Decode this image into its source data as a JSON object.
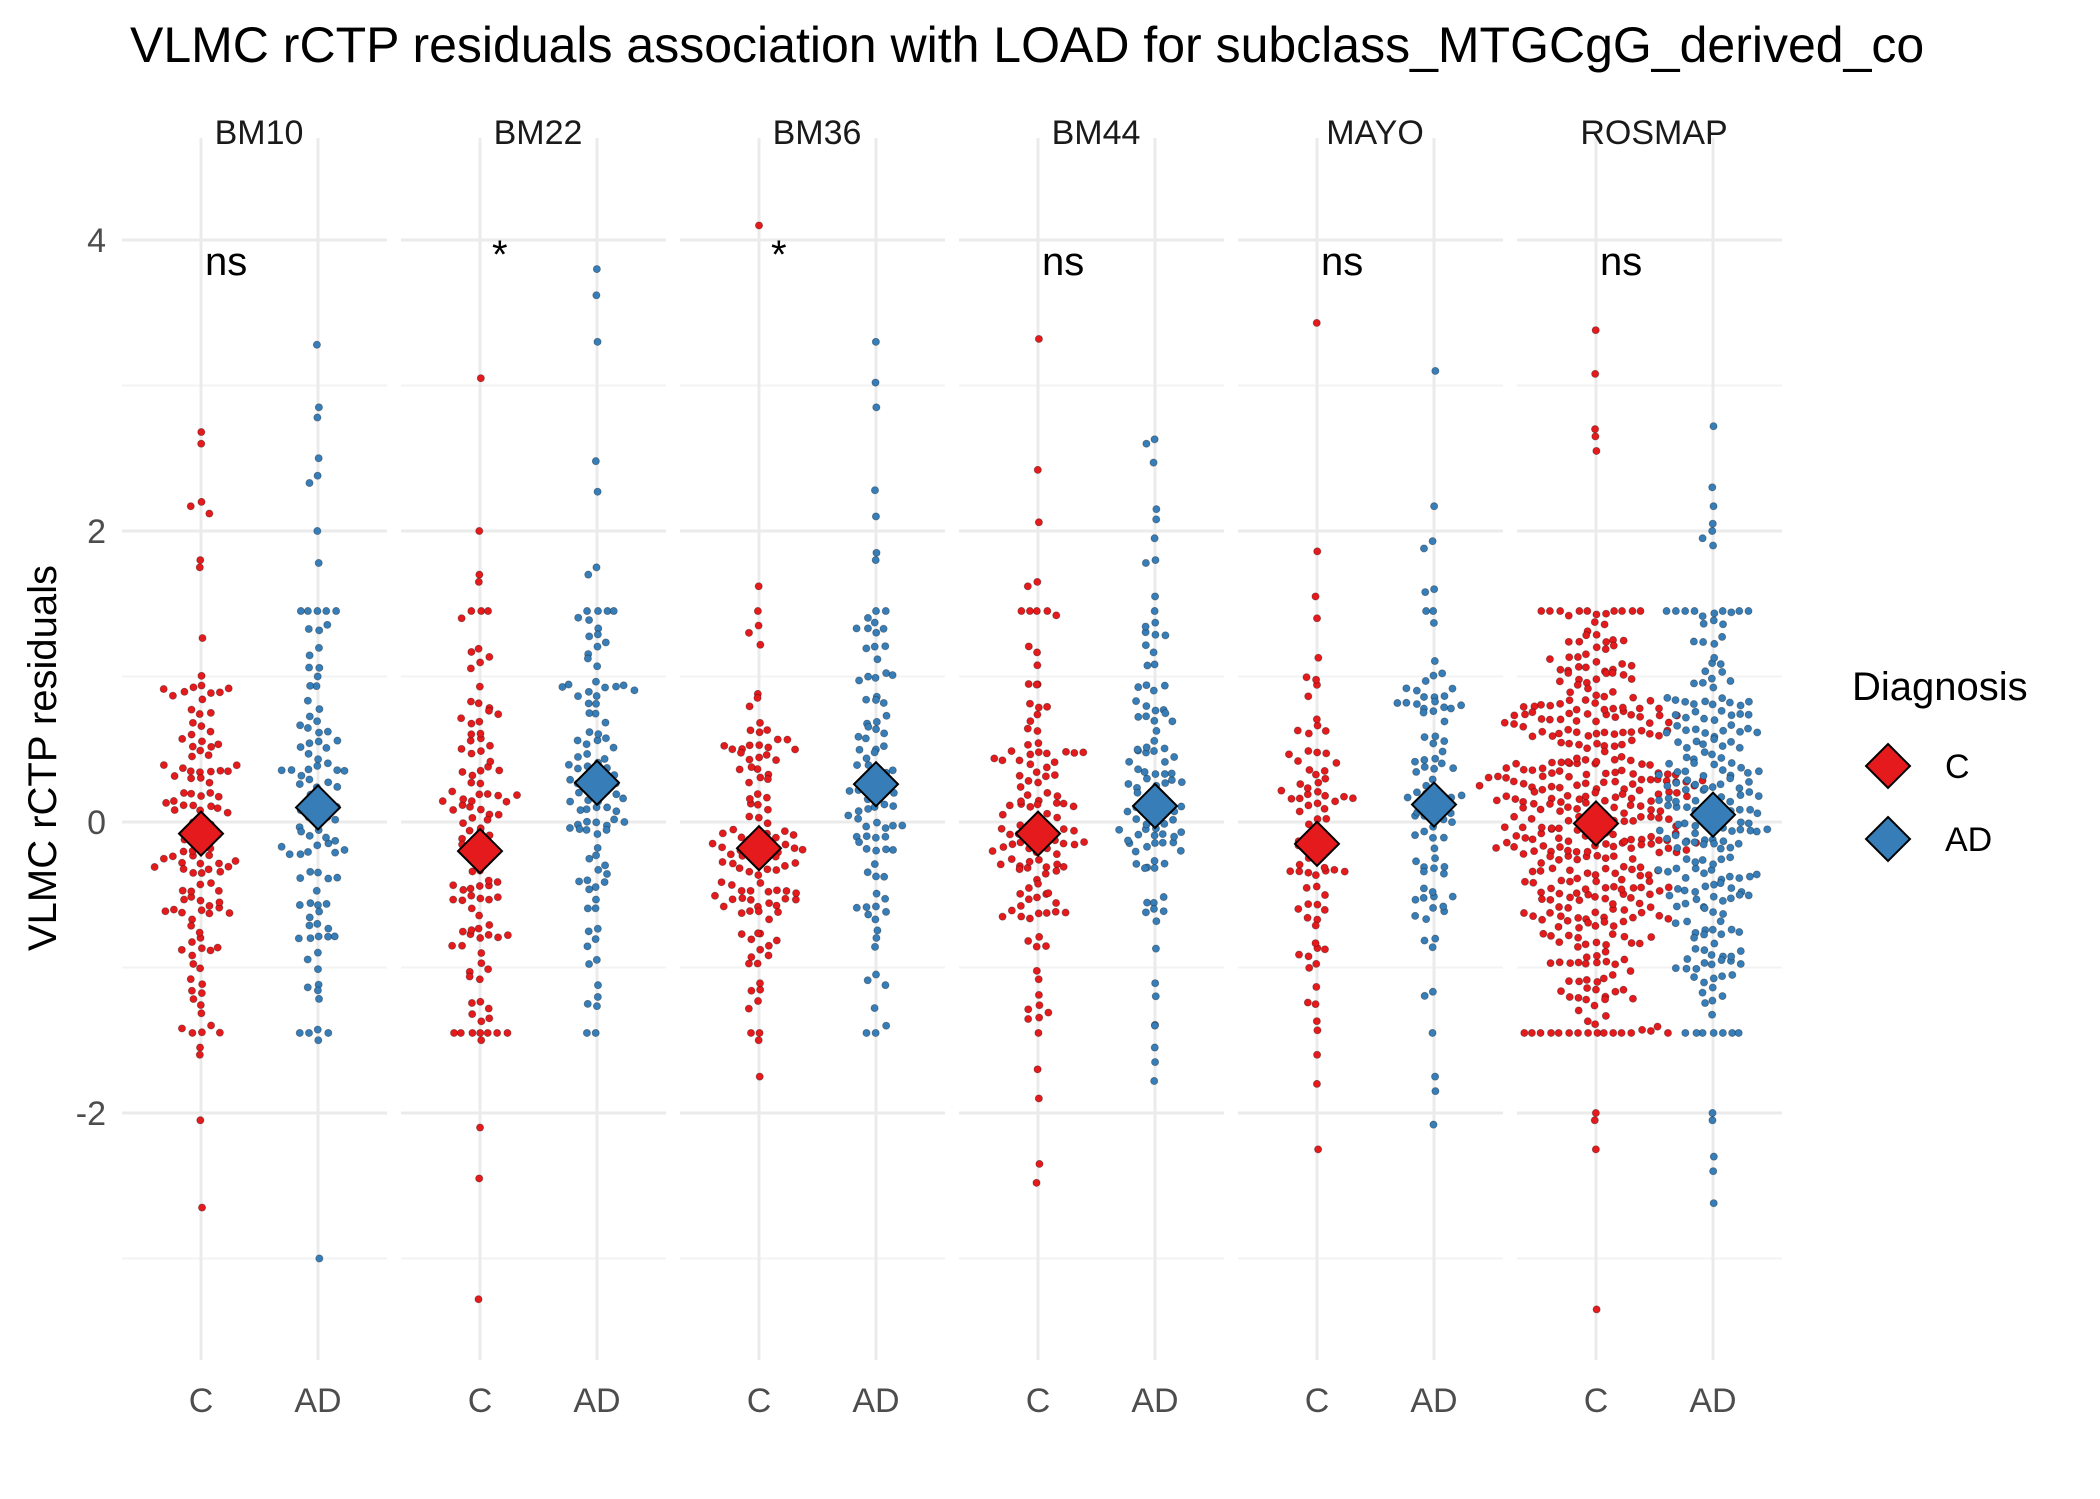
{
  "chart_data": {
    "type": "scatter",
    "title": "VLMC rCTP residuals association with LOAD for subclass_MTGCgG_derived_co",
    "ylabel": "VLMC rCTP residuals",
    "xlabel": "",
    "ylim": [
      -3.75,
      4.35
    ],
    "yticks": [
      -2,
      0,
      2,
      4
    ],
    "grid": true,
    "legend": {
      "title": "Diagnosis",
      "placement": "right",
      "entries": [
        {
          "label": "C",
          "color": "#E41A1C"
        },
        {
          "label": "AD",
          "color": "#377EB8"
        }
      ]
    },
    "categories": [
      "C",
      "AD"
    ],
    "colors": {
      "C": "#E41A1C",
      "AD": "#377EB8"
    },
    "facets": [
      {
        "name": "BM10",
        "significance": "ns",
        "groups": [
          {
            "diagnosis": "C",
            "n": 120,
            "mean": -0.08,
            "sd": 0.78,
            "extremes": [
              2.68,
              2.6,
              2.2,
              2.17,
              2.12,
              1.8,
              1.75,
              -1.55,
              -1.6,
              -2.05,
              -2.65
            ]
          },
          {
            "diagnosis": "AD",
            "n": 100,
            "mean": 0.1,
            "sd": 0.85,
            "extremes": [
              3.28,
              2.85,
              2.78,
              2.5,
              2.38,
              2.33,
              2.0,
              1.78,
              -1.5,
              -3.0
            ]
          }
        ]
      },
      {
        "name": "BM22",
        "significance": "*",
        "groups": [
          {
            "diagnosis": "C",
            "n": 110,
            "mean": -0.2,
            "sd": 0.8,
            "extremes": [
              3.05,
              2.0,
              1.7,
              1.65,
              1.4,
              -1.5,
              -2.1,
              -2.45,
              -3.28
            ]
          },
          {
            "diagnosis": "AD",
            "n": 100,
            "mean": 0.27,
            "sd": 0.82,
            "extremes": [
              3.8,
              3.62,
              3.3,
              2.48,
              2.27,
              1.75,
              1.7,
              -1.25
            ]
          }
        ]
      },
      {
        "name": "BM36",
        "significance": "*",
        "groups": [
          {
            "diagnosis": "C",
            "n": 115,
            "mean": -0.18,
            "sd": 0.78,
            "extremes": [
              4.1,
              1.62,
              1.35,
              1.3,
              -1.5,
              -1.75
            ]
          },
          {
            "diagnosis": "AD",
            "n": 90,
            "mean": 0.26,
            "sd": 0.85,
            "extremes": [
              3.3,
              3.02,
              2.85,
              2.28,
              2.1,
              1.85,
              1.8,
              -1.4
            ]
          }
        ]
      },
      {
        "name": "BM44",
        "significance": "ns",
        "groups": [
          {
            "diagnosis": "C",
            "n": 120,
            "mean": -0.08,
            "sd": 0.82,
            "extremes": [
              3.32,
              2.42,
              2.06,
              1.65,
              1.62,
              1.45,
              1.42,
              -1.7,
              -1.9,
              -2.35,
              -2.48
            ]
          },
          {
            "diagnosis": "AD",
            "n": 95,
            "mean": 0.11,
            "sd": 0.85,
            "extremes": [
              2.63,
              2.6,
              2.47,
              2.15,
              2.08,
              1.95,
              1.8,
              1.78,
              1.55,
              -1.55,
              -1.65,
              -1.78
            ]
          }
        ]
      },
      {
        "name": "MAYO",
        "significance": "ns",
        "groups": [
          {
            "diagnosis": "C",
            "n": 80,
            "mean": -0.15,
            "sd": 0.72,
            "extremes": [
              3.43,
              1.86,
              1.55,
              1.4,
              -1.6,
              -1.8,
              -2.25
            ]
          },
          {
            "diagnosis": "AD",
            "n": 85,
            "mean": 0.12,
            "sd": 0.8,
            "extremes": [
              3.1,
              2.17,
              1.93,
              1.88,
              1.6,
              1.58,
              -1.75,
              -1.85,
              -2.08
            ]
          }
        ]
      },
      {
        "name": "ROSMAP",
        "significance": "ns",
        "groups": [
          {
            "diagnosis": "C",
            "n": 420,
            "mean": -0.01,
            "sd": 0.88,
            "extremes": [
              3.38,
              3.08,
              2.7,
              2.65,
              2.55,
              -2.0,
              -2.05,
              -2.25,
              -3.35
            ]
          },
          {
            "diagnosis": "AD",
            "n": 230,
            "mean": 0.05,
            "sd": 0.95,
            "extremes": [
              2.72,
              2.3,
              2.17,
              2.05,
              2.0,
              1.95,
              1.9,
              -2.0,
              -2.05,
              -2.3,
              -2.4,
              -2.62
            ]
          }
        ]
      }
    ]
  }
}
